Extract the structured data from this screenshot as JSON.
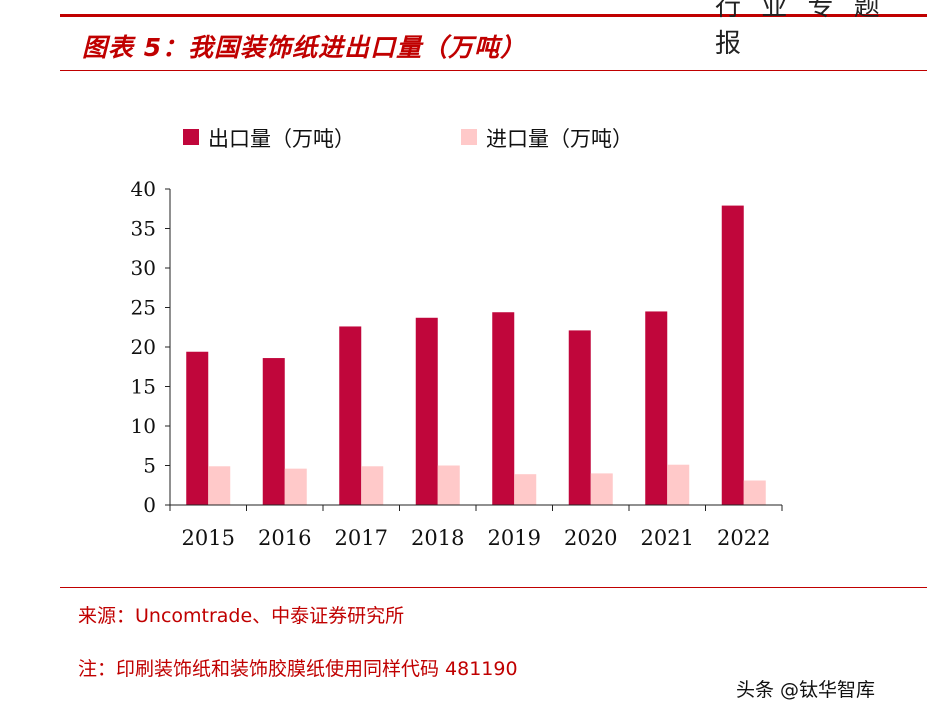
{
  "header": {
    "top_glyphs": "行 业 专 题 报",
    "figure_title": "图表 5：我国装饰纸进出口量（万吨）"
  },
  "chart_data": {
    "type": "bar",
    "title": "",
    "categories": [
      "2015",
      "2016",
      "2017",
      "2018",
      "2019",
      "2020",
      "2021",
      "2022"
    ],
    "series": [
      {
        "name": "出口量（万吨）",
        "color": "#c0063b",
        "values": [
          19.4,
          18.6,
          22.6,
          23.7,
          24.4,
          22.1,
          24.5,
          37.9
        ]
      },
      {
        "name": "进口量（万吨）",
        "color": "#ffc9c9",
        "values": [
          4.9,
          4.6,
          4.9,
          5.0,
          3.9,
          4.0,
          5.1,
          3.1
        ]
      }
    ],
    "xlabel": "",
    "ylabel": "",
    "ylim": [
      0,
      40
    ],
    "yticks": [
      "0",
      "5",
      "10",
      "15",
      "20",
      "25",
      "30",
      "35",
      "40"
    ],
    "legend_position": "top"
  },
  "footer": {
    "source": "来源：Uncomtrade、中泰证券研究所",
    "note": "注：印刷装饰纸和装饰胶膜纸使用同样代码 481190",
    "watermark": "头条 @钛华智库"
  }
}
